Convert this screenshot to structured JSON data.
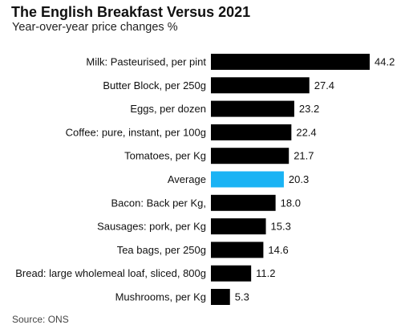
{
  "title": "The English Breakfast Versus 2021",
  "subtitle": "Year-over-year price changes %",
  "source": "Source: ONS",
  "colors": {
    "bar": "#000000",
    "highlight": "#1ab3f4",
    "text": "#111111"
  },
  "chart_data": {
    "type": "bar",
    "orientation": "horizontal",
    "categories": [
      "Milk: Pasteurised, per pint",
      "Butter Block, per 250g",
      "Eggs, per dozen",
      "Coffee: pure, instant, per 100g",
      "Tomatoes, per Kg",
      "Average",
      "Bacon: Back per Kg,",
      "Sausages: pork, per Kg",
      "Tea bags, per 250g",
      "Bread: large wholemeal loaf, sliced, 800g",
      "Mushrooms, per Kg"
    ],
    "values": [
      44.2,
      27.4,
      23.2,
      22.4,
      21.7,
      20.3,
      18.0,
      15.3,
      14.6,
      11.2,
      5.3
    ],
    "value_labels": [
      "44.2",
      "27.4",
      "23.2",
      "22.4",
      "21.7",
      "20.3",
      "18.0",
      "15.3",
      "14.6",
      "11.2",
      "5.3"
    ],
    "highlight_category": "Average",
    "title": "The English Breakfast Versus 2021",
    "subtitle": "Year-over-year price changes %",
    "xlabel": "",
    "ylabel": "",
    "xlim": [
      0,
      44.2
    ],
    "grid": false,
    "legend": "none"
  }
}
